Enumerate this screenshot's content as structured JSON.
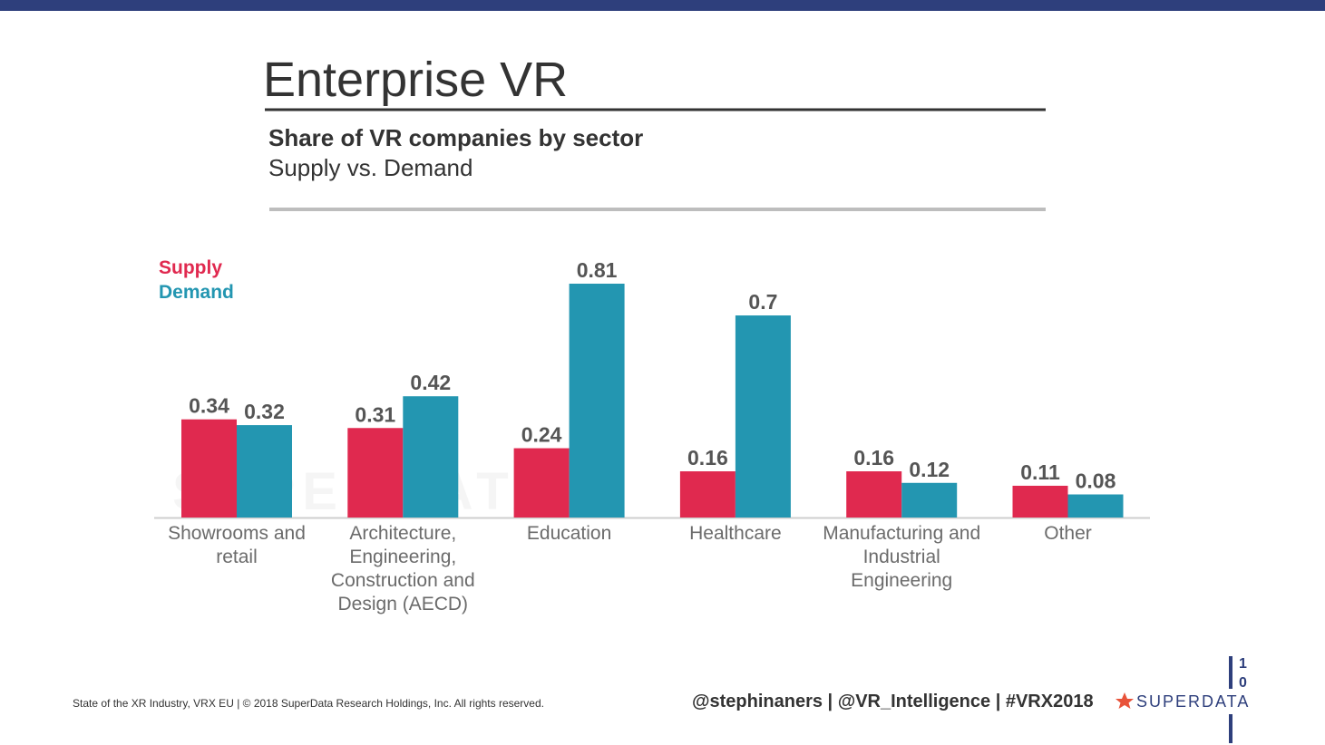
{
  "title": "Enterprise VR",
  "footer": {
    "copyright": "State of the XR Industry, VRX EU | © 2018 SuperData Research Holdings, Inc. All rights reserved.",
    "handles": "@stephinaners | @VR_Intelligence | #VRX2018",
    "logo": "SUPERDATA",
    "page_number": "10"
  },
  "chart_data": {
    "type": "bar",
    "title": "Share of VR companies by sector",
    "subtitle": "Supply vs. Demand",
    "categories": [
      "Showrooms and retail",
      "Architecture, Engineering, Construction and Design (AECD)",
      "Education",
      "Healthcare",
      "Manufacturing and Industrial Engineering",
      "Other"
    ],
    "series": [
      {
        "name": "Supply",
        "color": "#e0294f",
        "values": [
          0.34,
          0.31,
          0.24,
          0.16,
          0.16,
          0.11
        ]
      },
      {
        "name": "Demand",
        "color": "#2396b1",
        "values": [
          0.32,
          0.42,
          0.81,
          0.7,
          0.12,
          0.08
        ]
      }
    ]
  }
}
